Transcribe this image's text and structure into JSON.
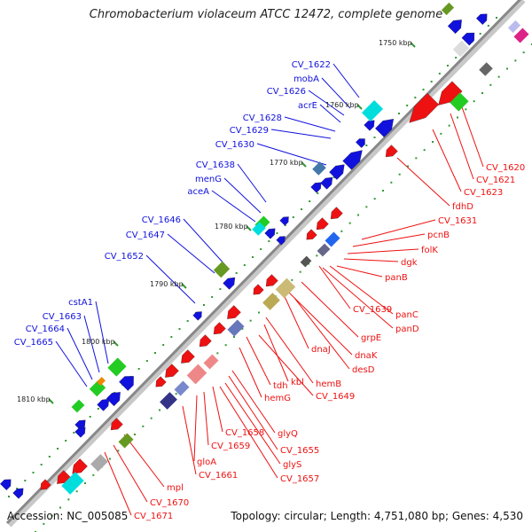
{
  "title": "Chromobacterium violaceum ATCC 12472, complete genome",
  "footer": {
    "accession_label": "Accession: NC_005085",
    "topology_label": "Topology: circular; Length: 4,751,080 bp; Genes: 4,530"
  },
  "colors": {
    "forward_strand": "#1111dd",
    "reverse_strand": "#ee1111",
    "backbone": "#888888",
    "tick": "#339933"
  },
  "ticks": [
    "1750 kbp",
    "1760 kbp",
    "1770 kbp",
    "1780 kbp",
    "1790 kbp",
    "1800 kbp",
    "1810 kbp"
  ],
  "forward_labels": [
    "CV_1622",
    "mobA",
    "CV_1626",
    "acrE",
    "CV_1628",
    "CV_1629",
    "CV_1630",
    "CV_1638",
    "menG",
    "aceA",
    "CV_1646",
    "CV_1647",
    "CV_1652",
    "cstA1",
    "CV_1663",
    "CV_1664",
    "CV_1665"
  ],
  "reverse_labels": [
    "CV_1620",
    "CV_1621",
    "CV_1623",
    "fdhD",
    "CV_1631",
    "pcnB",
    "folK",
    "dgk",
    "panB",
    "CV_1639",
    "panC",
    "panD",
    "grpE",
    "dnaJ",
    "dnaK",
    "desD",
    "hemB",
    "kbl",
    "CV_1649",
    "tdh",
    "hemG",
    "glyQ",
    "CV_1655",
    "CV_1658",
    "CV_1659",
    "glyS",
    "CV_1657",
    "gloA",
    "CV_1661",
    "mpl",
    "CV_1670",
    "CV_1671"
  ]
}
